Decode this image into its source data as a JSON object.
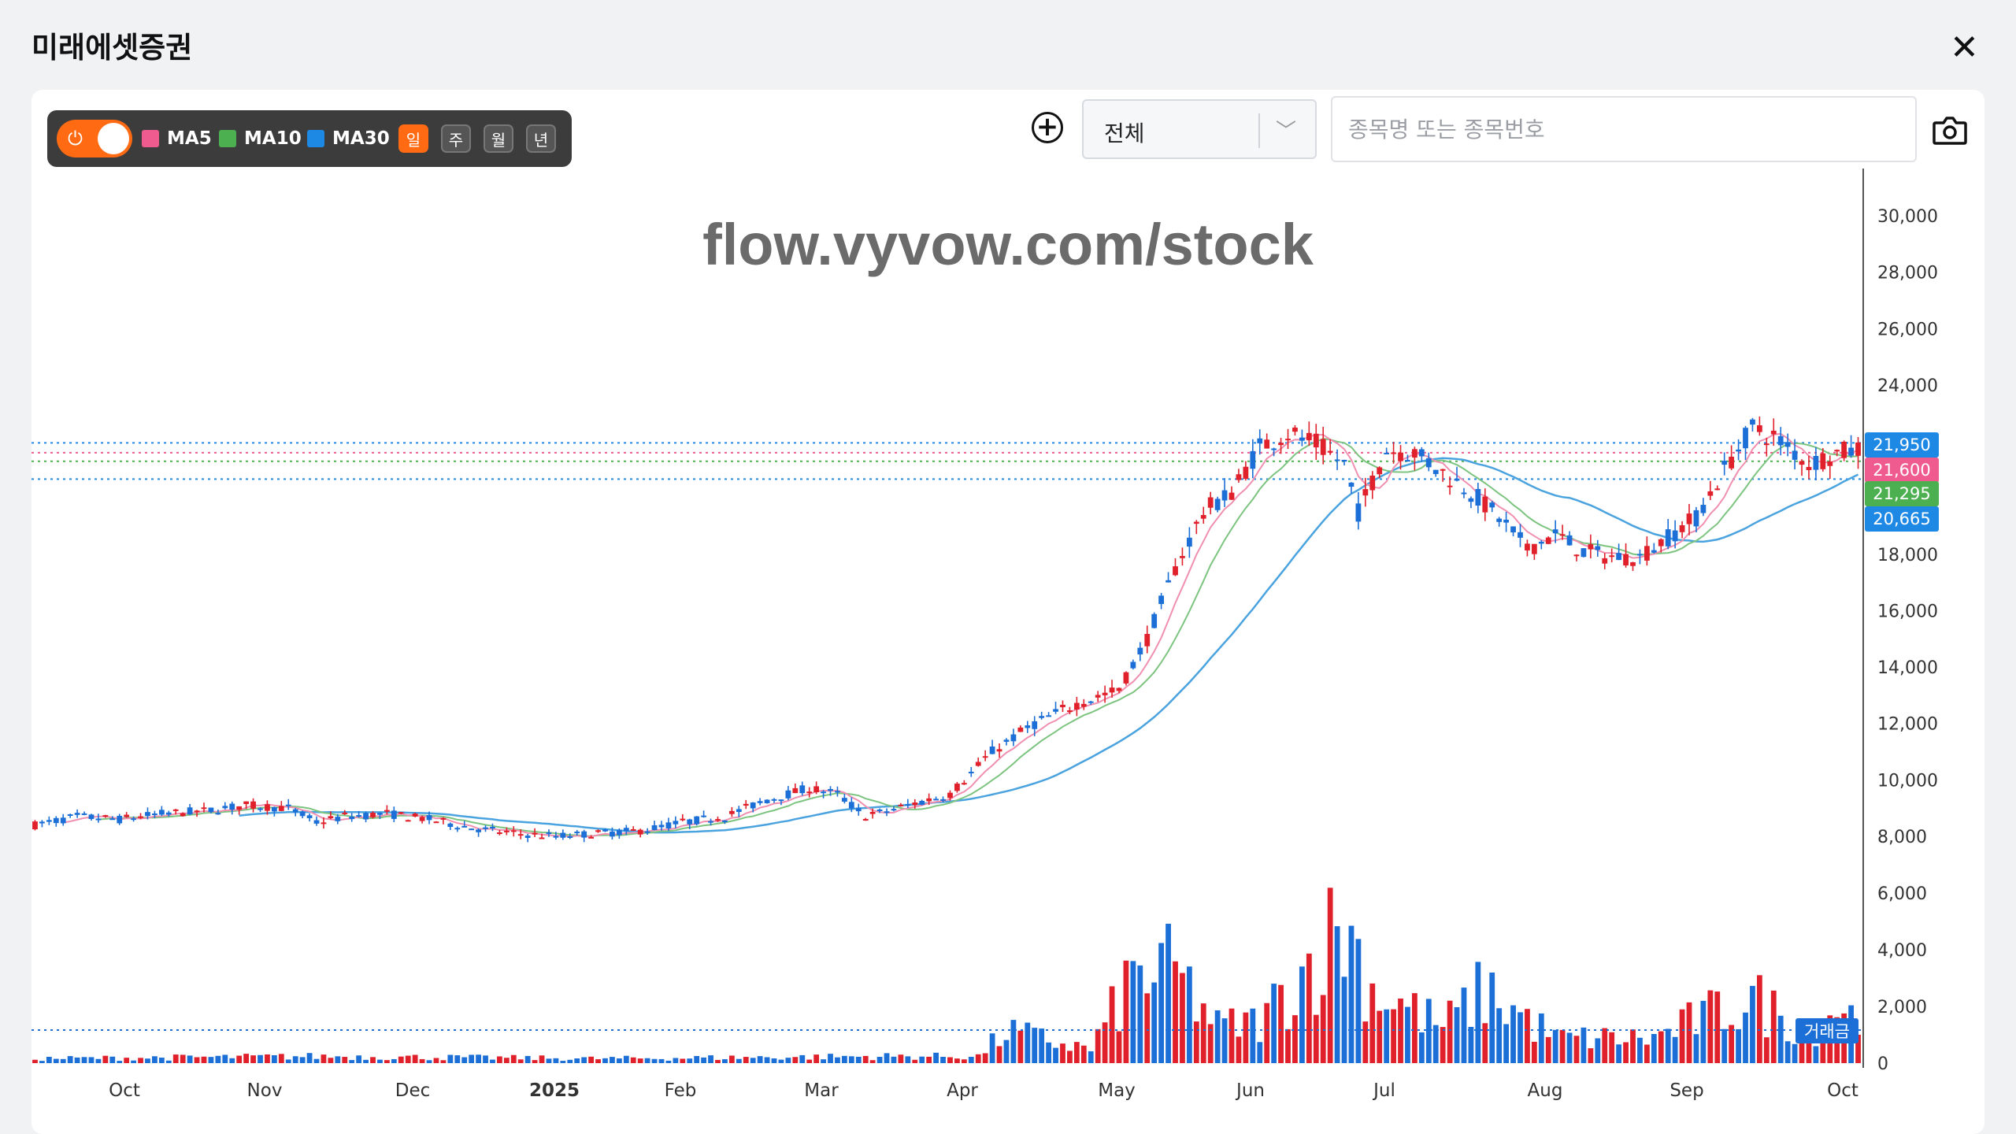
{
  "app": {
    "title": "미래에셋증권",
    "close_icon": "close-icon"
  },
  "toolbar": {
    "toggle_on": true,
    "legend": [
      {
        "label": "MA5",
        "color": "#ef5b8e"
      },
      {
        "label": "MA10",
        "color": "#4caf50"
      },
      {
        "label": "MA30",
        "color": "#1e88e5"
      }
    ],
    "periods": [
      "일",
      "주",
      "월",
      "년"
    ],
    "active_period": "일"
  },
  "market_select": {
    "value": "전체"
  },
  "search": {
    "placeholder": "종목명 또는 종목번호",
    "value": ""
  },
  "watermark": "flow.vyvow.com/stock",
  "chart_data": {
    "type": "candlestick",
    "x_labels": [
      "Oct",
      "Nov",
      "Dec",
      "2025",
      "Feb",
      "Mar",
      "Apr",
      "May",
      "Jun",
      "Jul",
      "Aug",
      "Sep",
      "Oct"
    ],
    "y_ticks": [
      "30,000",
      "28,000",
      "26,000",
      "24,000",
      "18,000",
      "16,000",
      "14,000",
      "12,000",
      "10,000",
      "8,000",
      "6,000",
      "4,000",
      "2,000",
      "0"
    ],
    "ylim": [
      0,
      30000
    ],
    "price_labels": [
      {
        "label": "21,950",
        "value": 21950,
        "color": "#1e88e5"
      },
      {
        "label": "21,600",
        "value": 21600,
        "color": "#ef5b8e"
      },
      {
        "label": "21,295",
        "value": 21295,
        "color": "#4caf50"
      },
      {
        "label": "20,665",
        "value": 20665,
        "color": "#1e88e5"
      }
    ],
    "volume_label": "거래금",
    "up_color": "#e0202b",
    "down_color": "#1b6fd6",
    "close_series": [
      {
        "x": 0,
        "y": 8400
      },
      {
        "x": 6,
        "y": 8700
      },
      {
        "x": 12,
        "y": 8600
      },
      {
        "x": 18,
        "y": 8800
      },
      {
        "x": 24,
        "y": 8900
      },
      {
        "x": 30,
        "y": 9100
      },
      {
        "x": 36,
        "y": 9000
      },
      {
        "x": 40,
        "y": 8500
      },
      {
        "x": 44,
        "y": 8700
      },
      {
        "x": 50,
        "y": 8800
      },
      {
        "x": 56,
        "y": 8600
      },
      {
        "x": 62,
        "y": 8300
      },
      {
        "x": 68,
        "y": 8100
      },
      {
        "x": 74,
        "y": 8000
      },
      {
        "x": 80,
        "y": 8100
      },
      {
        "x": 86,
        "y": 8200
      },
      {
        "x": 92,
        "y": 8500
      },
      {
        "x": 98,
        "y": 8700
      },
      {
        "x": 104,
        "y": 9300
      },
      {
        "x": 110,
        "y": 9700
      },
      {
        "x": 114,
        "y": 9500
      },
      {
        "x": 118,
        "y": 8700
      },
      {
        "x": 124,
        "y": 9100
      },
      {
        "x": 130,
        "y": 9500
      },
      {
        "x": 136,
        "y": 11000
      },
      {
        "x": 142,
        "y": 12000
      },
      {
        "x": 148,
        "y": 12700
      },
      {
        "x": 154,
        "y": 13200
      },
      {
        "x": 158,
        "y": 15000
      },
      {
        "x": 162,
        "y": 17500
      },
      {
        "x": 166,
        "y": 19500
      },
      {
        "x": 170,
        "y": 20200
      },
      {
        "x": 174,
        "y": 21800
      },
      {
        "x": 178,
        "y": 22300
      },
      {
        "x": 182,
        "y": 21900
      },
      {
        "x": 186,
        "y": 21200
      },
      {
        "x": 188,
        "y": 19500
      },
      {
        "x": 192,
        "y": 21700
      },
      {
        "x": 196,
        "y": 21600
      },
      {
        "x": 200,
        "y": 20900
      },
      {
        "x": 204,
        "y": 20200
      },
      {
        "x": 208,
        "y": 19300
      },
      {
        "x": 212,
        "y": 18200
      },
      {
        "x": 216,
        "y": 18700
      },
      {
        "x": 220,
        "y": 18100
      },
      {
        "x": 224,
        "y": 17900
      },
      {
        "x": 228,
        "y": 17900
      },
      {
        "x": 232,
        "y": 18600
      },
      {
        "x": 236,
        "y": 19300
      },
      {
        "x": 240,
        "y": 21000
      },
      {
        "x": 244,
        "y": 22500
      },
      {
        "x": 248,
        "y": 22000
      },
      {
        "x": 252,
        "y": 21200
      },
      {
        "x": 256,
        "y": 21600
      },
      {
        "x": 259,
        "y": 21700
      }
    ],
    "volume_series": [
      {
        "x": 0,
        "y": 200
      },
      {
        "x": 40,
        "y": 300
      },
      {
        "x": 80,
        "y": 200
      },
      {
        "x": 120,
        "y": 300
      },
      {
        "x": 134,
        "y": 300
      },
      {
        "x": 138,
        "y": 1400
      },
      {
        "x": 150,
        "y": 600
      },
      {
        "x": 156,
        "y": 3800
      },
      {
        "x": 162,
        "y": 4000
      },
      {
        "x": 168,
        "y": 1600
      },
      {
        "x": 174,
        "y": 1800
      },
      {
        "x": 186,
        "y": 6200
      },
      {
        "x": 190,
        "y": 3300
      },
      {
        "x": 200,
        "y": 1600
      },
      {
        "x": 206,
        "y": 3200
      },
      {
        "x": 216,
        "y": 1100
      },
      {
        "x": 230,
        "y": 1100
      },
      {
        "x": 236,
        "y": 1900
      },
      {
        "x": 244,
        "y": 2800
      },
      {
        "x": 252,
        "y": 1400
      },
      {
        "x": 256,
        "y": 2600
      },
      {
        "x": 259,
        "y": 1800
      }
    ]
  }
}
